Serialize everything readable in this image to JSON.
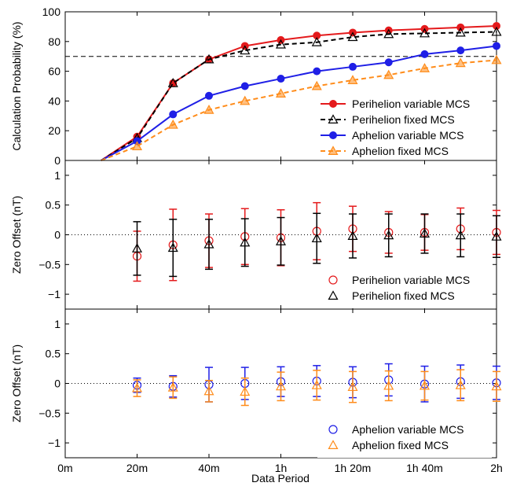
{
  "figure": {
    "shared_x_axis": {
      "label": "Data Period",
      "tick_labels": [
        "0m",
        "20m",
        "40m",
        "1h",
        "1h 20m",
        "1h 40m",
        "2h"
      ],
      "tick_values": [
        0,
        20,
        40,
        60,
        80,
        100,
        120
      ],
      "range": [
        0,
        120
      ]
    }
  },
  "chart_data": [
    {
      "type": "line",
      "ylabel": "Calculation Probability (%)",
      "xlabel": "Data Period",
      "ylim": [
        0,
        100
      ],
      "yticks": [
        0,
        20,
        40,
        60,
        80,
        100
      ],
      "grid": false,
      "legend": "lower-right",
      "reference_line": {
        "y": 70,
        "style": "dashed",
        "color": "#000000"
      },
      "series": [
        {
          "name": "Perihelion variable MCS",
          "color": "#e41a1c",
          "marker": "circle-filled",
          "dash": "solid",
          "x": [
            10,
            20,
            30,
            40,
            50,
            60,
            70,
            80,
            90,
            100,
            110,
            120
          ],
          "y": [
            0,
            16,
            52,
            68,
            77,
            81,
            84,
            86,
            87.5,
            88.5,
            89.5,
            90.5
          ]
        },
        {
          "name": "Perihelion fixed MCS",
          "color": "#000000",
          "marker": "triangle-open",
          "dash": "dashed",
          "x": [
            10,
            20,
            30,
            40,
            50,
            60,
            70,
            80,
            90,
            100,
            110,
            120
          ],
          "y": [
            0,
            15,
            52,
            68,
            74,
            78,
            79.5,
            83,
            85,
            85.5,
            86,
            86.5
          ]
        },
        {
          "name": "Aphelion variable MCS",
          "color": "#1f1fe6",
          "marker": "circle-filled",
          "dash": "solid",
          "x": [
            10,
            20,
            30,
            40,
            50,
            60,
            70,
            80,
            90,
            100,
            110,
            120
          ],
          "y": [
            0,
            13,
            31,
            43.5,
            50,
            55,
            60,
            63,
            66,
            71.5,
            74,
            77
          ]
        },
        {
          "name": "Aphelion fixed MCS",
          "color": "#ff8c1a",
          "marker": "triangle-filled",
          "dash": "dashed",
          "x": [
            10,
            20,
            30,
            40,
            50,
            60,
            70,
            80,
            90,
            100,
            110,
            120
          ],
          "y": [
            0,
            9.5,
            24,
            34,
            40,
            45,
            50,
            54,
            57.5,
            62,
            65.5,
            67.5
          ]
        }
      ]
    },
    {
      "type": "scatter",
      "ylabel": "Zero Offset (nT)",
      "ylim": [
        -1.25,
        1.25
      ],
      "yticks": [
        -1,
        -0.5,
        0,
        0.5,
        1
      ],
      "ytick_labels": [
        "−1",
        "−0.5",
        "0",
        "0.5",
        "1"
      ],
      "grid": false,
      "legend": "lower-right",
      "reference_line": {
        "y": 0,
        "style": "dotted",
        "color": "#000000"
      },
      "series": [
        {
          "name": "Perihelion variable MCS",
          "color": "#e41a1c",
          "marker": "circle-open",
          "offset": 0,
          "x": [
            20,
            30,
            40,
            50,
            60,
            70,
            80,
            90,
            100,
            110,
            120
          ],
          "y": [
            -0.36,
            -0.17,
            -0.1,
            -0.03,
            -0.05,
            0.06,
            0.1,
            0.04,
            0.04,
            0.1,
            0.04
          ],
          "err": [
            0.42,
            0.6,
            0.45,
            0.47,
            0.47,
            0.48,
            0.38,
            0.35,
            0.3,
            0.35,
            0.37
          ]
        },
        {
          "name": "Perihelion fixed MCS",
          "color": "#000000",
          "marker": "triangle-open",
          "offset": 0,
          "x": [
            20,
            30,
            40,
            50,
            60,
            70,
            80,
            90,
            100,
            110,
            120
          ],
          "y": [
            -0.23,
            -0.22,
            -0.16,
            -0.13,
            -0.11,
            -0.06,
            -0.02,
            -0.01,
            0.02,
            -0.01,
            -0.03
          ],
          "err": [
            0.45,
            0.48,
            0.42,
            0.4,
            0.4,
            0.42,
            0.37,
            0.36,
            0.33,
            0.36,
            0.35
          ]
        }
      ]
    },
    {
      "type": "scatter",
      "ylabel": "Zero Offset (nT)",
      "ylim": [
        -1.25,
        1.25
      ],
      "yticks": [
        -1,
        -0.5,
        0,
        0.5,
        1
      ],
      "ytick_labels": [
        "−1",
        "−0.5",
        "0",
        "0.5",
        "1"
      ],
      "grid": false,
      "legend": "lower-right",
      "reference_line": {
        "y": 0,
        "style": "dotted",
        "color": "#000000"
      },
      "series": [
        {
          "name": "Aphelion variable MCS",
          "color": "#1f1fe6",
          "marker": "circle-open",
          "offset": 0,
          "x": [
            20,
            30,
            40,
            50,
            60,
            70,
            80,
            90,
            100,
            110,
            120
          ],
          "y": [
            -0.03,
            -0.05,
            -0.02,
            0,
            0.03,
            0.04,
            0.02,
            0.06,
            -0.01,
            0.03,
            0.01
          ],
          "err": [
            0.12,
            0.18,
            0.29,
            0.27,
            0.25,
            0.26,
            0.26,
            0.27,
            0.3,
            0.28,
            0.28
          ]
        },
        {
          "name": "Aphelion fixed MCS",
          "color": "#ff8c1a",
          "marker": "triangle-open",
          "offset": 0,
          "x": [
            20,
            30,
            40,
            50,
            60,
            70,
            80,
            90,
            100,
            110,
            120
          ],
          "y": [
            -0.08,
            -0.07,
            -0.13,
            -0.14,
            -0.05,
            -0.03,
            -0.06,
            -0.04,
            -0.04,
            -0.03,
            -0.05
          ],
          "err": [
            0.14,
            0.18,
            0.18,
            0.23,
            0.24,
            0.25,
            0.26,
            0.25,
            0.24,
            0.26,
            0.25
          ]
        }
      ]
    }
  ]
}
